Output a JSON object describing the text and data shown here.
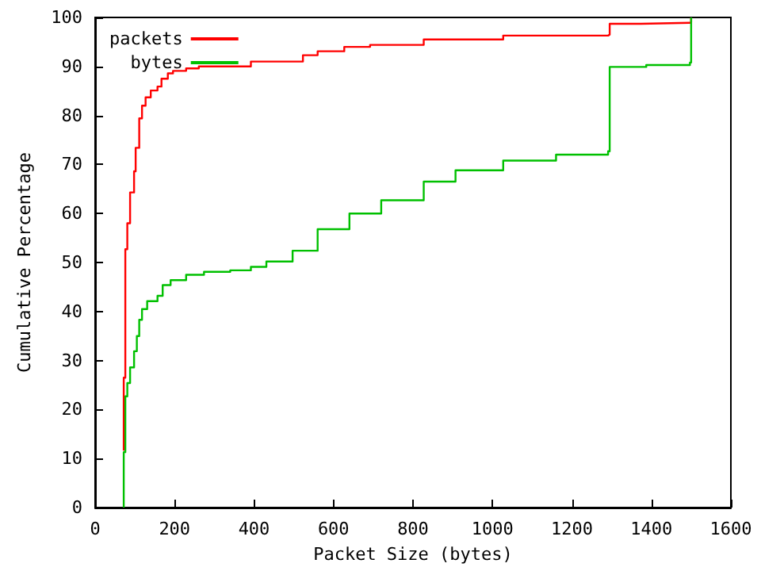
{
  "chart_data": {
    "type": "step",
    "xlabel": "Packet Size (bytes)",
    "ylabel": "Cumulative Percentage",
    "xlim": [
      0,
      1600
    ],
    "xticks": [
      0,
      200,
      400,
      600,
      800,
      1000,
      1200,
      1400,
      1600
    ],
    "ylim": [
      0,
      100
    ],
    "yticks": [
      0,
      10,
      20,
      30,
      40,
      50,
      60,
      70,
      80,
      90,
      100
    ],
    "grid": false,
    "legend": "top left",
    "marker": "none",
    "line_style": "solid",
    "series": [
      {
        "name": "packets",
        "color": "#ff0000",
        "x": [
          72,
          72,
          76,
          81,
          88,
          98,
          102,
          111,
          118,
          127,
          140,
          157,
          167,
          183,
          196,
          229,
          261,
          392,
          523,
          560,
          627,
          692,
          827,
          1027,
          1291,
          1295,
          1373,
          1497,
          1500
        ],
        "values": [
          11.6,
          26.5,
          52.7,
          58,
          64.3,
          68.6,
          73.4,
          79.4,
          82,
          83.7,
          85.1,
          85.9,
          87.5,
          88.6,
          89.1,
          89.6,
          90,
          91,
          92.3,
          93.1,
          94,
          94.4,
          95.5,
          96.3,
          96.5,
          98.7,
          98.9,
          99,
          100
        ]
      },
      {
        "name": "bytes",
        "color": "#00c000",
        "x": [
          72,
          72,
          76,
          81,
          88,
          98,
          105,
          111,
          118,
          131,
          157,
          170,
          190,
          229,
          274,
          340,
          392,
          431,
          497,
          560,
          640,
          720,
          827,
          907,
          1027,
          1160,
          1291,
          1295,
          1387,
          1497,
          1500
        ],
        "values": [
          0,
          11.3,
          22.7,
          25.4,
          28.6,
          31.9,
          35,
          38.3,
          40.5,
          42.1,
          43.2,
          45.4,
          46.4,
          47.5,
          48.1,
          48.4,
          49.1,
          50.2,
          52.4,
          56.8,
          60,
          62.7,
          66.5,
          68.8,
          70.8,
          72,
          72.7,
          89.9,
          90.3,
          90.8,
          100
        ]
      }
    ]
  }
}
